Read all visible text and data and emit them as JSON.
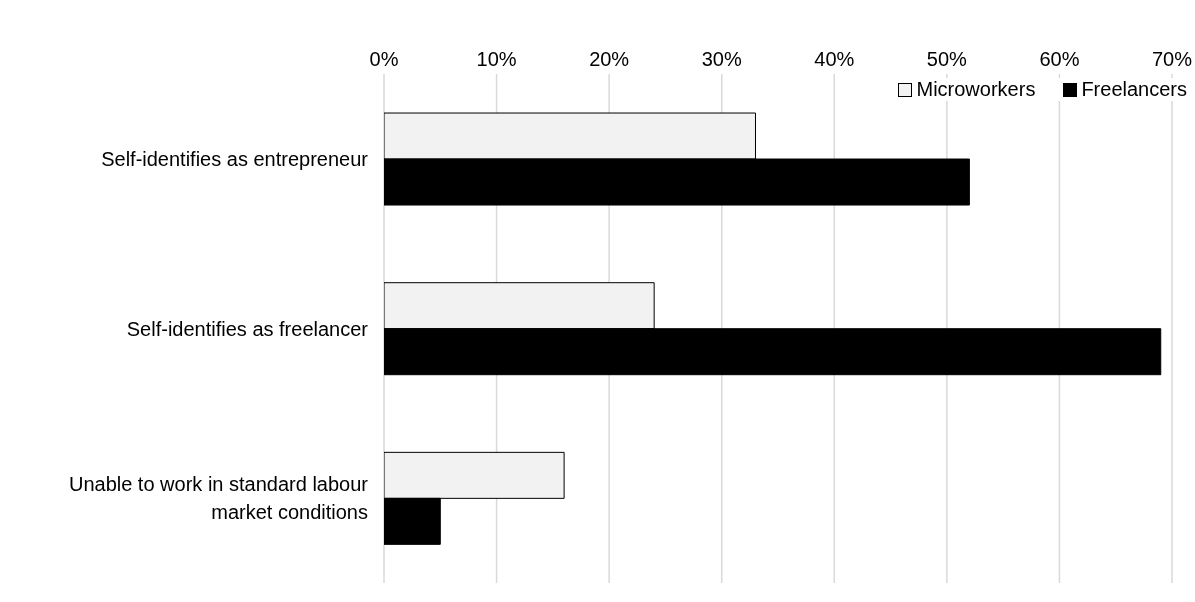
{
  "chart_data": {
    "type": "bar",
    "orientation": "horizontal",
    "categories": [
      "Self-identifies as entrepreneur",
      "Self-identifies as freelancer",
      "Unable to work in standard labour market conditions"
    ],
    "series": [
      {
        "name": "Microworkers",
        "color": "#f2f2f2",
        "values": [
          33,
          24,
          16
        ]
      },
      {
        "name": "Freelancers",
        "color": "#000000",
        "values": [
          52,
          69,
          5
        ]
      }
    ],
    "xlim": [
      0,
      70
    ],
    "xticks": [
      {
        "value": 0,
        "label": "0%"
      },
      {
        "value": 10,
        "label": "10%"
      },
      {
        "value": 20,
        "label": "20%"
      },
      {
        "value": 30,
        "label": "30%"
      },
      {
        "value": 40,
        "label": "40%"
      },
      {
        "value": 50,
        "label": "50%"
      },
      {
        "value": 60,
        "label": "60%"
      },
      {
        "value": 70,
        "label": "70%"
      }
    ],
    "grid": "x",
    "legend": "top right"
  }
}
